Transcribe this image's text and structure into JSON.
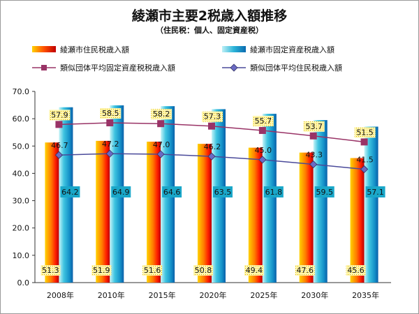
{
  "title": "綾瀬市主要2税歳入額推移",
  "subtitle": "（住民税：個人、固定資産税）",
  "chart_data": {
    "type": "bar",
    "categories": [
      "2008年",
      "2010年",
      "2015年",
      "2020年",
      "2025年",
      "2030年",
      "2035年"
    ],
    "ylim": [
      0,
      70
    ],
    "yticks": [
      "0.0",
      "10.0",
      "20.0",
      "30.0",
      "40.0",
      "50.0",
      "60.0",
      "70.0"
    ],
    "grid": false,
    "legend_placement": "top",
    "series": [
      {
        "name": "綾瀬市住民税歳入額",
        "kind": "bar",
        "color": "#ff3300",
        "values": [
          51.3,
          51.9,
          51.6,
          50.8,
          49.4,
          47.6,
          45.6
        ]
      },
      {
        "name": "綾瀬市固定資産税歳入額",
        "kind": "bar",
        "color": "#1aa7c9",
        "values": [
          64.2,
          64.9,
          64.6,
          63.5,
          61.8,
          59.5,
          57.1
        ]
      },
      {
        "name": "類似団体平均固定資産税税歳入額",
        "kind": "line",
        "color": "#993366",
        "marker": "square",
        "values": [
          57.9,
          58.5,
          58.2,
          57.3,
          55.7,
          53.7,
          51.5
        ]
      },
      {
        "name": "類似団体平均住民税歳入額",
        "kind": "line",
        "color": "#4a4a9a",
        "marker": "diamond",
        "values": [
          46.7,
          47.2,
          47.0,
          46.2,
          45.0,
          43.3,
          41.5
        ]
      }
    ]
  }
}
